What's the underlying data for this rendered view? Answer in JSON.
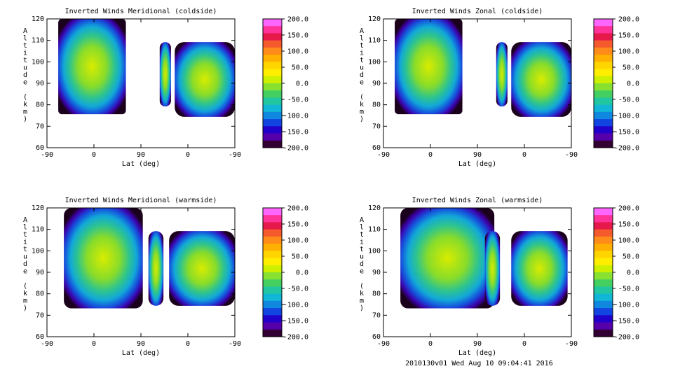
{
  "footer": "2010130v01 Wed Aug 10 09:04:41 2016",
  "colorbar": {
    "labels": [
      "200.0",
      "150.0",
      "100.0",
      "50.0",
      "0.0",
      "-50.0",
      "-100.0",
      "-150.0",
      "-200.0"
    ],
    "colors": [
      "#ff66ff",
      "#ff3399",
      "#e6194b",
      "#f55a2c",
      "#ff8c1a",
      "#ffb000",
      "#ffd500",
      "#ffee00",
      "#ccf000",
      "#88e030",
      "#44d060",
      "#22c6a0",
      "#11b5d5",
      "#1188e0",
      "#1144e0",
      "#2200cc",
      "#5500aa",
      "#330033"
    ]
  },
  "chart_data": [
    {
      "type": "heatmap",
      "title": "Inverted Winds Meridional (coldside)",
      "xlabel": "Lat (deg)",
      "ylabel": "Altitude (km)",
      "xticks": [
        "-90",
        "0",
        "90",
        "0",
        "-90"
      ],
      "yticks": [
        "120",
        "110",
        "100",
        "90",
        "80",
        "70",
        "60"
      ],
      "ylim": [
        60,
        120
      ],
      "zlim": [
        -200,
        200
      ],
      "grid": false
    },
    {
      "type": "heatmap",
      "title": "Inverted Winds Zonal (coldside)",
      "xlabel": "Lat (deg)",
      "ylabel": "Altitude (km)",
      "xticks": [
        "-90",
        "0",
        "90",
        "0",
        "-90"
      ],
      "yticks": [
        "120",
        "110",
        "100",
        "90",
        "80",
        "70",
        "60"
      ],
      "ylim": [
        60,
        120
      ],
      "zlim": [
        -200,
        200
      ],
      "grid": false
    },
    {
      "type": "heatmap",
      "title": "Inverted Winds Meridional (warmside)",
      "xlabel": "Lat (deg)",
      "ylabel": "Altitude (km)",
      "xticks": [
        "-90",
        "0",
        "90",
        "0",
        "-90"
      ],
      "yticks": [
        "120",
        "110",
        "100",
        "90",
        "80",
        "70",
        "60"
      ],
      "ylim": [
        60,
        120
      ],
      "zlim": [
        -200,
        200
      ],
      "grid": false
    },
    {
      "type": "heatmap",
      "title": "Inverted Winds Zonal (warmside)",
      "xlabel": "Lat (deg)",
      "ylabel": "Altitude (km)",
      "xticks": [
        "-90",
        "0",
        "90",
        "0",
        "-90"
      ],
      "yticks": [
        "120",
        "110",
        "100",
        "90",
        "80",
        "70",
        "60"
      ],
      "ylim": [
        60,
        120
      ],
      "zlim": [
        -200,
        200
      ],
      "grid": false
    }
  ]
}
